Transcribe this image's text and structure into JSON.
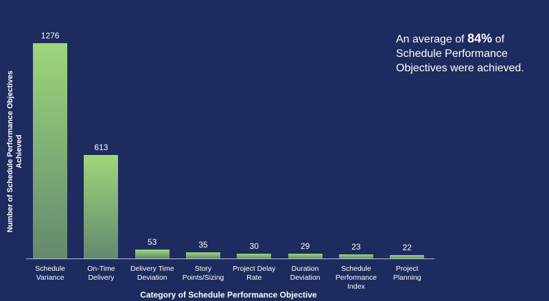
{
  "chart_data": {
    "type": "bar",
    "categories": [
      "Schedule Variance",
      "On-Time Delivery",
      "Delivery Time Deviation",
      "Story Points/Sizing",
      "Project Delay Rate",
      "Duration Deviation",
      "Schedule Performance Index",
      "Project Planning"
    ],
    "values": [
      1276,
      613,
      53,
      35,
      30,
      29,
      23,
      22
    ],
    "color": "#9fd67a",
    "ylim": [
      0,
      1300
    ],
    "y_label": "Number of Schedule Performance Objectives Achieved",
    "x_label": "Category of Schedule Performance Objective",
    "annotation": {
      "prefix": "An average of",
      "highlight": "84%",
      "suffix": "of Schedule Performance Objectives were achieved."
    }
  }
}
